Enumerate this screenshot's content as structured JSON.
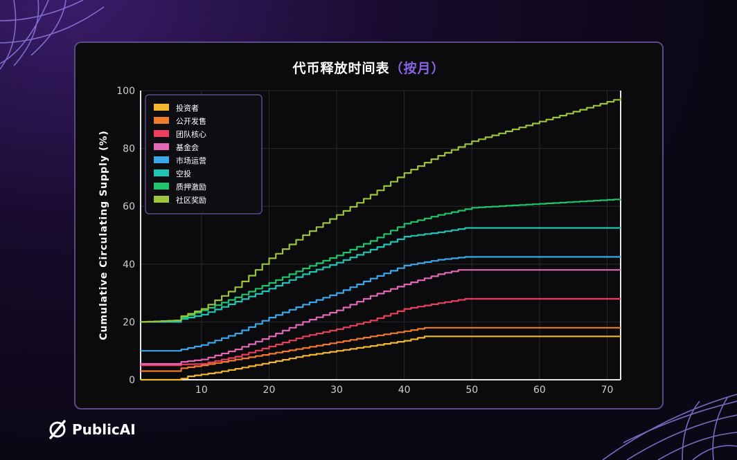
{
  "brand": {
    "name": "PublicAI"
  },
  "title": {
    "main": "代币释放时间表",
    "accent": "（按月）"
  },
  "colors": {
    "accent": "#8a63e6",
    "panel_border": "#5b4a86"
  },
  "chart_data": {
    "type": "line",
    "title": "代币释放时间表（按月）",
    "xlabel": "",
    "ylabel": "Cumulative Circulating Supply (%)",
    "xlim": [
      1,
      72
    ],
    "ylim": [
      0,
      100
    ],
    "xticks": [
      10,
      20,
      30,
      40,
      50,
      60,
      70
    ],
    "yticks": [
      0,
      20,
      40,
      60,
      80,
      100
    ],
    "grid": true,
    "legend_position": "top-left",
    "series": [
      {
        "name": "投资者",
        "color": "#f1b72e",
        "points": [
          [
            1,
            0
          ],
          [
            6,
            0
          ],
          [
            7,
            0.4
          ],
          [
            8,
            1.2
          ],
          [
            12,
            2.5
          ],
          [
            15,
            3.8
          ],
          [
            20,
            6
          ],
          [
            25,
            8.3
          ],
          [
            30,
            10
          ],
          [
            35,
            11.7
          ],
          [
            40,
            13.5
          ],
          [
            43,
            15
          ],
          [
            72,
            15
          ]
        ]
      },
      {
        "name": "公开发售",
        "color": "#f07a2d",
        "points": [
          [
            1,
            3
          ],
          [
            6,
            3
          ],
          [
            7,
            4
          ],
          [
            10,
            5
          ],
          [
            15,
            7
          ],
          [
            20,
            9
          ],
          [
            25,
            11
          ],
          [
            30,
            13
          ],
          [
            35,
            15
          ],
          [
            40,
            16.8
          ],
          [
            43,
            18
          ],
          [
            72,
            18
          ]
        ]
      },
      {
        "name": "团队核心",
        "color": "#ea3e5e",
        "points": [
          [
            1,
            5
          ],
          [
            6,
            5
          ],
          [
            7,
            5.3
          ],
          [
            10,
            5.5
          ],
          [
            15,
            8
          ],
          [
            20,
            11.5
          ],
          [
            25,
            15
          ],
          [
            30,
            17.5
          ],
          [
            35,
            20.5
          ],
          [
            40,
            24.5
          ],
          [
            45,
            26.5
          ],
          [
            49,
            28
          ],
          [
            72,
            28
          ]
        ]
      },
      {
        "name": "基金会",
        "color": "#e267b7",
        "points": [
          [
            1,
            5.5
          ],
          [
            6,
            5.5
          ],
          [
            7,
            6.2
          ],
          [
            10,
            7
          ],
          [
            15,
            10.5
          ],
          [
            20,
            15
          ],
          [
            25,
            20
          ],
          [
            30,
            24
          ],
          [
            35,
            29
          ],
          [
            40,
            33
          ],
          [
            45,
            36.5
          ],
          [
            48,
            38
          ],
          [
            72,
            38
          ]
        ]
      },
      {
        "name": "市场运营",
        "color": "#3ba7e8",
        "points": [
          [
            1,
            10
          ],
          [
            6,
            10
          ],
          [
            7,
            10.5
          ],
          [
            10,
            12
          ],
          [
            15,
            16
          ],
          [
            20,
            21.5
          ],
          [
            25,
            26
          ],
          [
            30,
            30
          ],
          [
            35,
            35
          ],
          [
            40,
            39.5
          ],
          [
            45,
            41.5
          ],
          [
            49,
            42.5
          ],
          [
            72,
            42.5
          ]
        ]
      },
      {
        "name": "空投",
        "color": "#1fc4b4",
        "points": [
          [
            1,
            20
          ],
          [
            6,
            20
          ],
          [
            7,
            21
          ],
          [
            10,
            22.5
          ],
          [
            15,
            27
          ],
          [
            20,
            31.5
          ],
          [
            25,
            36.5
          ],
          [
            30,
            40.5
          ],
          [
            35,
            45
          ],
          [
            40,
            49.5
          ],
          [
            45,
            51
          ],
          [
            49,
            52.5
          ],
          [
            72,
            52.5
          ]
        ]
      },
      {
        "name": "质押激励",
        "color": "#21c46b",
        "points": [
          [
            1,
            20
          ],
          [
            6,
            20.5
          ],
          [
            7,
            21.5
          ],
          [
            10,
            24
          ],
          [
            15,
            28.5
          ],
          [
            20,
            33.5
          ],
          [
            25,
            38.5
          ],
          [
            30,
            43
          ],
          [
            35,
            48
          ],
          [
            40,
            54
          ],
          [
            45,
            57
          ],
          [
            50,
            59.5
          ],
          [
            72,
            62.5
          ]
        ]
      },
      {
        "name": "社区奖励",
        "color": "#9bc43a",
        "points": [
          [
            1,
            20
          ],
          [
            6,
            20.5
          ],
          [
            7,
            22
          ],
          [
            10,
            24.5
          ],
          [
            15,
            32
          ],
          [
            20,
            42
          ],
          [
            25,
            50
          ],
          [
            30,
            57
          ],
          [
            35,
            64
          ],
          [
            40,
            71.5
          ],
          [
            45,
            77.5
          ],
          [
            50,
            82.5
          ],
          [
            72,
            97.5
          ]
        ]
      }
    ]
  }
}
